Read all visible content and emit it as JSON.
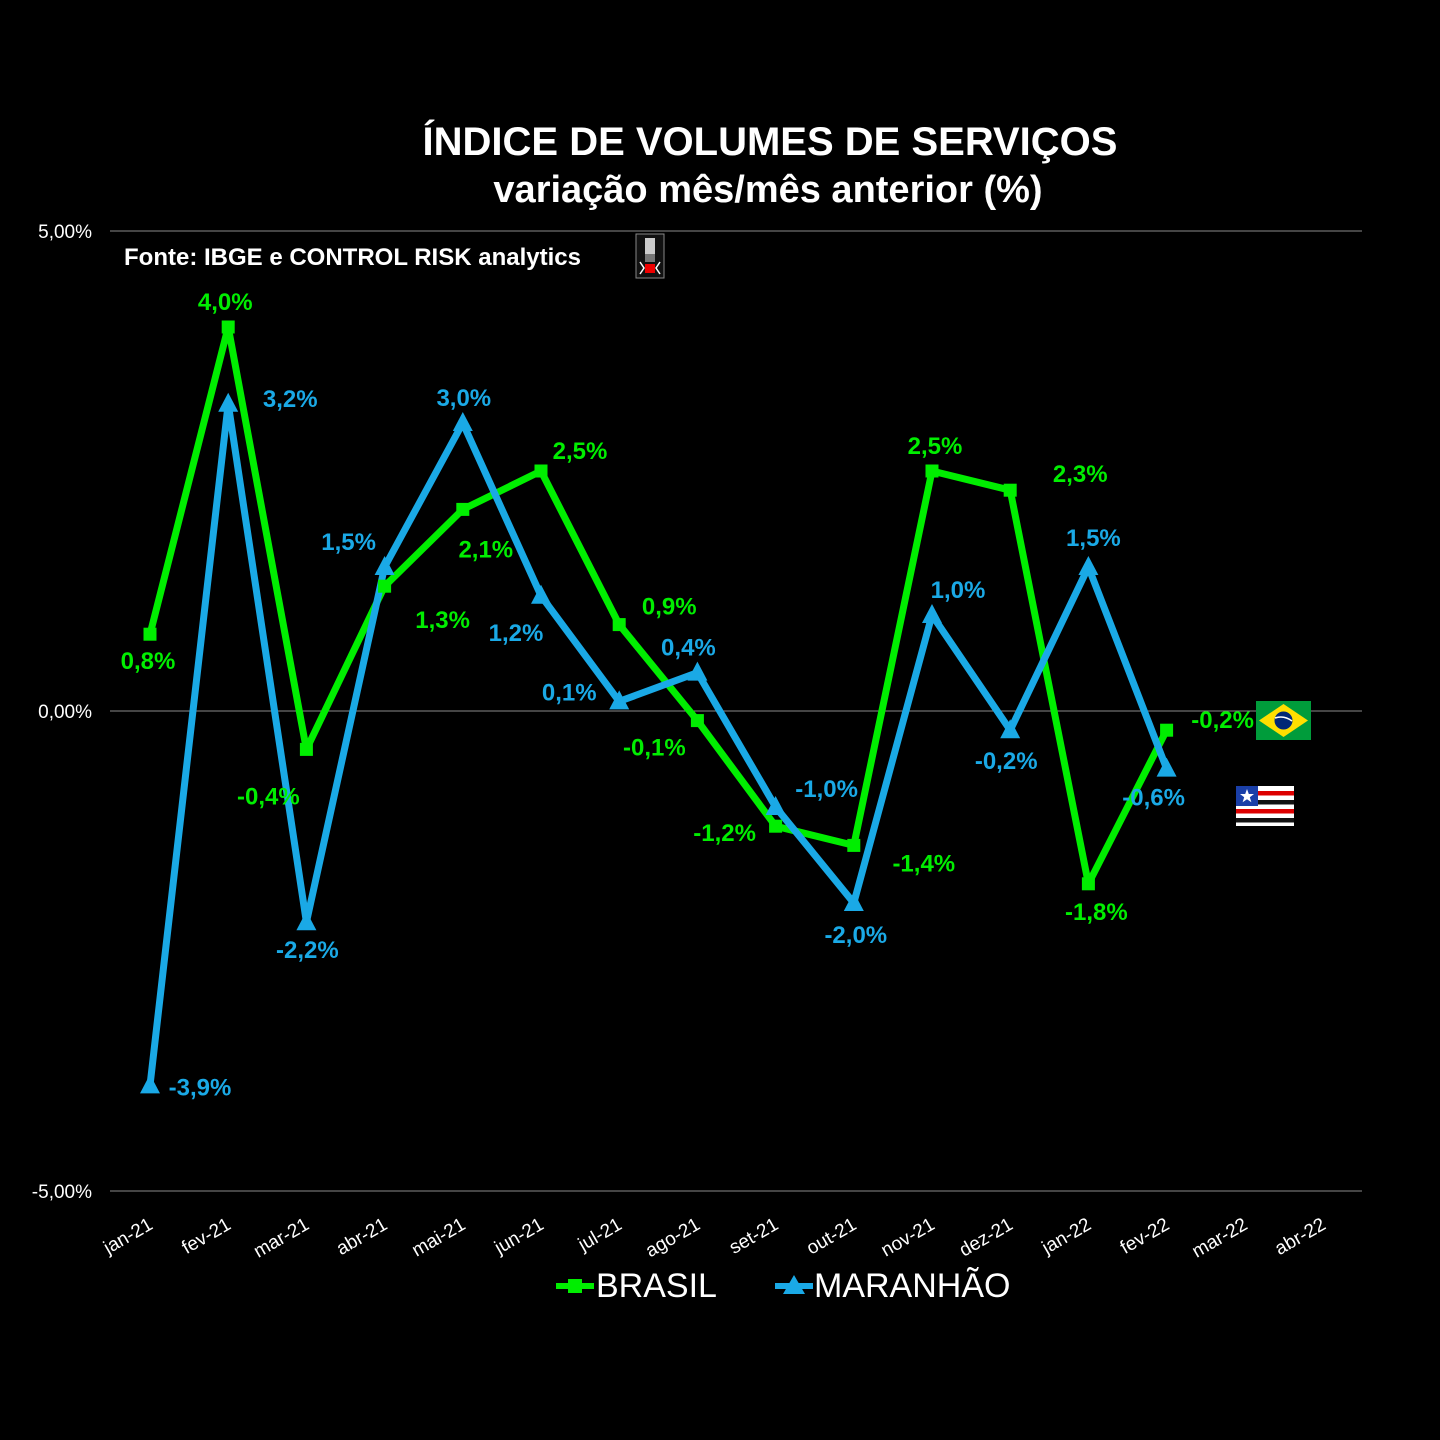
{
  "chart_data": {
    "type": "line",
    "title": "ÍNDICE DE VOLUMES DE SERVIÇOS",
    "subtitle": "variação mês/mês anterior (%)",
    "source": "Fonte: IBGE e CONTROL RISK analytics",
    "categories": [
      "jan-21",
      "fev-21",
      "mar-21",
      "abr-21",
      "mai-21",
      "jun-21",
      "jul-21",
      "ago-21",
      "set-21",
      "out-21",
      "nov-21",
      "dez-21",
      "jan-22",
      "fev-22",
      "mar-22",
      "abr-22"
    ],
    "y_ticks": [
      {
        "value": 5.0,
        "label": "5,00%"
      },
      {
        "value": 0.0,
        "label": "0,00%"
      },
      {
        "value": -5.0,
        "label": "-5,00%"
      }
    ],
    "ylim": [
      -5.0,
      5.0
    ],
    "grid": "horizontal",
    "legend_position": "bottom",
    "series": [
      {
        "name": "BRASIL",
        "color": "#00ee00",
        "marker": "square",
        "values": [
          0.8,
          4.0,
          -0.4,
          1.3,
          2.1,
          2.5,
          0.9,
          -0.1,
          -1.2,
          -1.4,
          2.5,
          2.3,
          -1.8,
          -0.2,
          null,
          null
        ],
        "labels": [
          "0,8%",
          "4,0%",
          "-0,4%",
          "1,3%",
          "2,1%",
          "2,5%",
          "0,9%",
          "-0,1%",
          "-1,2%",
          "-1,4%",
          "2,5%",
          "2,3%",
          "-1,8%",
          "-0,2%",
          "",
          ""
        ]
      },
      {
        "name": "MARANHÃO",
        "color": "#1aa9e6",
        "marker": "triangle",
        "values": [
          -3.9,
          3.2,
          -2.2,
          1.5,
          3.0,
          1.2,
          0.1,
          0.4,
          -1.0,
          -2.0,
          1.0,
          -0.2,
          1.5,
          -0.6,
          null,
          null
        ],
        "labels": [
          "-3,9%",
          "3,2%",
          "-2,2%",
          "1,5%",
          "3,0%",
          "1,2%",
          "0,1%",
          "0,4%",
          "-1,0%",
          "-2,0%",
          "1,0%",
          "-0,2%",
          "1,5%",
          "-0,6%",
          "",
          ""
        ]
      }
    ]
  },
  "icons": {
    "brasil_flag": "brazil-flag-icon",
    "maranhao_flag": "maranhao-flag-icon",
    "logo": "control-risk-logo-icon"
  }
}
